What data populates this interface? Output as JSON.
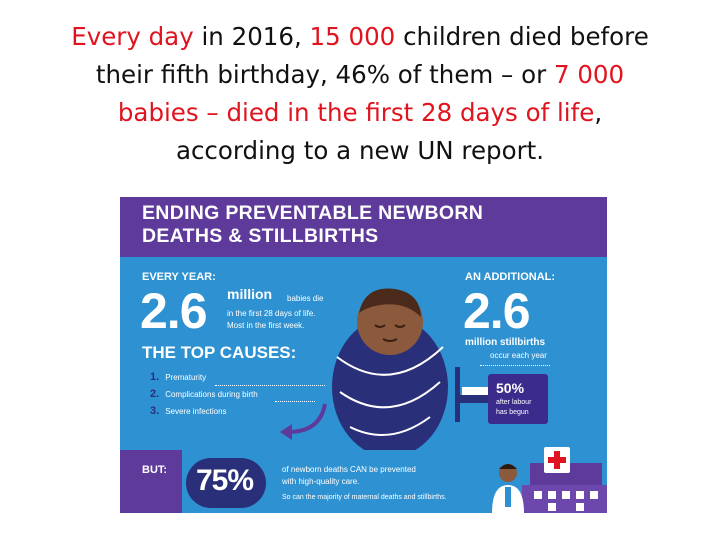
{
  "headline": {
    "line1": {
      "a": "Every day",
      "b": " in 2016, ",
      "c": "15 000",
      "d": " children died before"
    },
    "line2": {
      "a": "their fifth birthday, 46% of them – or ",
      "b": "7 000"
    },
    "line3": {
      "a": "babies – died in the first 28 days of life",
      "b": ","
    },
    "line4": "according to a new UN report."
  },
  "infographic": {
    "title_line1": "ENDING PREVENTABLE NEWBORN",
    "title_line2": "DEATHS & STILLBIRTHS",
    "every_year_label": "EVERY YEAR:",
    "every_year_value": "2.6",
    "million_word": "million",
    "babies_die": "babies die",
    "first_28": "in the first 28 days of life.",
    "most_first_week": "Most in the first week.",
    "additional_label": "AN ADDITIONAL:",
    "additional_value": "2.6",
    "million_stillbirths": "million stillbirths",
    "occur_each_year": "occur each year",
    "top_causes": "THE TOP CAUSES:",
    "causes": [
      {
        "num": "1.",
        "label": "Prematurity"
      },
      {
        "num": "2.",
        "label": "Complications during birth"
      },
      {
        "num": "3.",
        "label": "Severe infections"
      }
    ],
    "percent_50": "50%",
    "after_labour_1": "after labour",
    "after_labour_2": "has begun",
    "but_label": "BUT:",
    "percent_75": "75%",
    "prevented_1": "of newborn deaths CAN be prevented",
    "prevented_2": "with high-quality care.",
    "prevented_3": "So can the majority of maternal deaths and stillbirths."
  },
  "colors": {
    "headline_red": "#e0141e",
    "banner_purple": "#5e3a9b",
    "panel_blue": "#2e91d1",
    "swaddle_navy": "#2a2f7a",
    "cross_red": "#e0141e"
  }
}
